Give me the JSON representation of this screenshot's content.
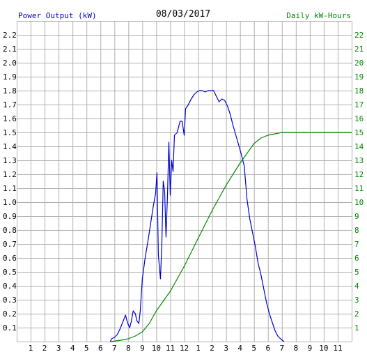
{
  "header": {
    "left_label": "Power Output (kW)",
    "title": "08/03/2017",
    "right_label": "Daily kW-Hours"
  },
  "colors": {
    "left_label": "#0000cc",
    "right_label": "#008800",
    "grid": "#b0b0b0",
    "power_line": "#0000cc",
    "energy_line": "#008800",
    "axis_text": "#000000"
  },
  "chart_data": {
    "type": "line",
    "title": "08/03/2017",
    "x_ticks": [
      "1",
      "2",
      "3",
      "4",
      "5",
      "6",
      "7",
      "8",
      "9",
      "10",
      "11",
      "12",
      "1",
      "2",
      "3",
      "4",
      "5",
      "6",
      "7",
      "8",
      "9",
      "10",
      "11"
    ],
    "x_range_hours": [
      0,
      24
    ],
    "y_left": {
      "label": "Power Output (kW)",
      "range": [
        0,
        2.3
      ],
      "ticks": [
        "0.1",
        "0.2",
        "0.3",
        "0.4",
        "0.5",
        "0.6",
        "0.7",
        "0.8",
        "0.9",
        "1.0",
        "1.1",
        "1.2",
        "1.3",
        "1.4",
        "1.5",
        "1.6",
        "1.7",
        "1.8",
        "1.9",
        "2.0",
        "2.1",
        "2.2"
      ]
    },
    "y_right": {
      "label": "Daily kW-Hours",
      "range": [
        0,
        23
      ],
      "ticks": [
        "1",
        "2",
        "3",
        "4",
        "5",
        "6",
        "7",
        "8",
        "9",
        "10",
        "11",
        "12",
        "13",
        "14",
        "15",
        "16",
        "17",
        "18",
        "19",
        "20",
        "21",
        "22"
      ]
    },
    "grid": true,
    "series": [
      {
        "axis": "left",
        "color": "#0000cc",
        "points": [
          [
            6.7,
            0
          ],
          [
            6.8,
            0.02
          ],
          [
            7.0,
            0.03
          ],
          [
            7.2,
            0.05
          ],
          [
            7.4,
            0.09
          ],
          [
            7.6,
            0.14
          ],
          [
            7.8,
            0.19
          ],
          [
            7.9,
            0.15
          ],
          [
            8.0,
            0.12
          ],
          [
            8.1,
            0.1
          ],
          [
            8.2,
            0.14
          ],
          [
            8.35,
            0.22
          ],
          [
            8.5,
            0.2
          ],
          [
            8.6,
            0.15
          ],
          [
            8.75,
            0.13
          ],
          [
            8.85,
            0.22
          ],
          [
            9.0,
            0.45
          ],
          [
            9.2,
            0.6
          ],
          [
            9.4,
            0.72
          ],
          [
            9.6,
            0.85
          ],
          [
            9.8,
            0.98
          ],
          [
            9.95,
            1.06
          ],
          [
            10.05,
            1.21
          ],
          [
            10.15,
            0.62
          ],
          [
            10.3,
            0.45
          ],
          [
            10.4,
            0.7
          ],
          [
            10.5,
            1.15
          ],
          [
            10.6,
            1.08
          ],
          [
            10.7,
            0.75
          ],
          [
            10.8,
            1.05
          ],
          [
            10.9,
            1.43
          ],
          [
            11.0,
            1.05
          ],
          [
            11.1,
            1.3
          ],
          [
            11.2,
            1.22
          ],
          [
            11.3,
            1.48
          ],
          [
            11.5,
            1.5
          ],
          [
            11.7,
            1.58
          ],
          [
            11.85,
            1.58
          ],
          [
            12.0,
            1.48
          ],
          [
            12.1,
            1.67
          ],
          [
            12.3,
            1.7
          ],
          [
            12.5,
            1.74
          ],
          [
            12.7,
            1.77
          ],
          [
            12.9,
            1.79
          ],
          [
            13.1,
            1.8
          ],
          [
            13.3,
            1.8
          ],
          [
            13.5,
            1.79
          ],
          [
            13.7,
            1.8
          ],
          [
            13.9,
            1.8
          ],
          [
            14.1,
            1.8
          ],
          [
            14.3,
            1.76
          ],
          [
            14.5,
            1.72
          ],
          [
            14.7,
            1.74
          ],
          [
            14.9,
            1.73
          ],
          [
            15.1,
            1.69
          ],
          [
            15.3,
            1.63
          ],
          [
            15.5,
            1.55
          ],
          [
            15.7,
            1.48
          ],
          [
            15.9,
            1.41
          ],
          [
            16.1,
            1.34
          ],
          [
            16.3,
            1.26
          ],
          [
            16.5,
            1.02
          ],
          [
            16.7,
            0.88
          ],
          [
            16.9,
            0.78
          ],
          [
            17.1,
            0.68
          ],
          [
            17.3,
            0.56
          ],
          [
            17.5,
            0.48
          ],
          [
            17.7,
            0.38
          ],
          [
            17.9,
            0.28
          ],
          [
            18.1,
            0.2
          ],
          [
            18.3,
            0.14
          ],
          [
            18.5,
            0.08
          ],
          [
            18.7,
            0.04
          ],
          [
            18.9,
            0.02
          ],
          [
            19.15,
            0.0
          ]
        ]
      },
      {
        "axis": "right",
        "color": "#008800",
        "points": [
          [
            6.7,
            0
          ],
          [
            7.5,
            0.1
          ],
          [
            8.0,
            0.2
          ],
          [
            8.5,
            0.4
          ],
          [
            9.0,
            0.7
          ],
          [
            9.5,
            1.3
          ],
          [
            10.0,
            2.2
          ],
          [
            10.5,
            2.9
          ],
          [
            11.0,
            3.6
          ],
          [
            11.5,
            4.5
          ],
          [
            12.0,
            5.4
          ],
          [
            12.5,
            6.4
          ],
          [
            13.0,
            7.4
          ],
          [
            13.5,
            8.4
          ],
          [
            14.0,
            9.4
          ],
          [
            14.5,
            10.3
          ],
          [
            15.0,
            11.2
          ],
          [
            15.5,
            12.0
          ],
          [
            16.0,
            12.8
          ],
          [
            16.5,
            13.5
          ],
          [
            17.0,
            14.2
          ],
          [
            17.5,
            14.6
          ],
          [
            18.0,
            14.8
          ],
          [
            18.5,
            14.9
          ],
          [
            19.0,
            15.0
          ],
          [
            20.0,
            15.0
          ],
          [
            24.0,
            15.0
          ]
        ]
      }
    ]
  }
}
